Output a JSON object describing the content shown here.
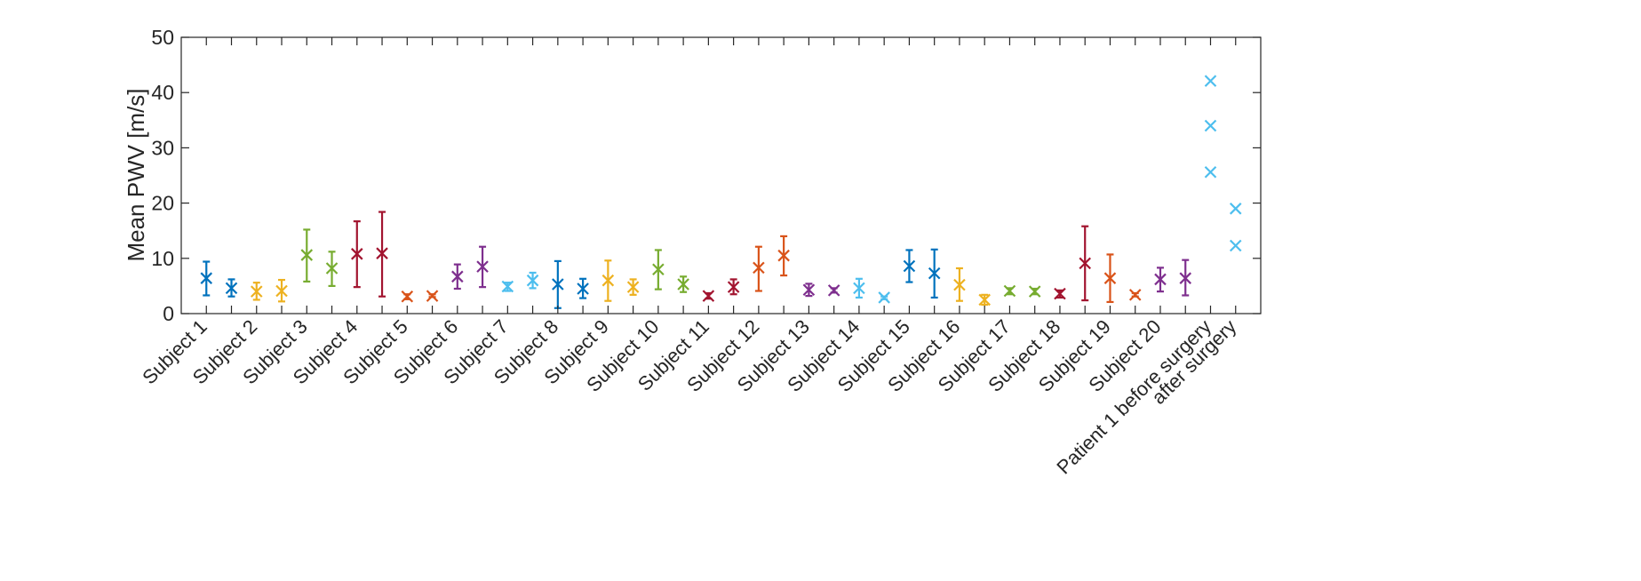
{
  "chart_data": {
    "type": "scatter",
    "title": "",
    "xlabel": "",
    "ylabel": "Mean PWV [m/s]",
    "ylim": [
      0,
      50
    ],
    "yticks": [
      0,
      10,
      20,
      30,
      40,
      50
    ],
    "grid": false,
    "categories": [
      "Subject 1",
      "Subject 2",
      "Subject 3",
      "Subject 4",
      "Subject 5",
      "Subject 6",
      "Subject 7",
      "Subject 8",
      "Subject 9",
      "Subject 10",
      "Subject 11",
      "Subject 12",
      "Subject 13",
      "Subject 14",
      "Subject 15",
      "Subject 16",
      "Subject 17",
      "Subject 18",
      "Subject 19",
      "Subject 20",
      "Patient 1 before surgery",
      "after surgery"
    ],
    "subjects": [
      {
        "label": "Subject 1",
        "color": "#0072BD",
        "measurements": [
          {
            "mean": 6.4,
            "low": 3.3,
            "high": 9.4
          },
          {
            "mean": 4.6,
            "low": 3.1,
            "high": 6.2
          }
        ]
      },
      {
        "label": "Subject 2",
        "color": "#EDB120",
        "measurements": [
          {
            "mean": 4.0,
            "low": 2.5,
            "high": 5.6
          },
          {
            "mean": 4.1,
            "low": 2.2,
            "high": 6.1
          }
        ]
      },
      {
        "label": "Subject 3",
        "color": "#77AC30",
        "measurements": [
          {
            "mean": 10.6,
            "low": 5.8,
            "high": 15.2
          },
          {
            "mean": 8.2,
            "low": 5.0,
            "high": 11.2
          }
        ]
      },
      {
        "label": "Subject 4",
        "color": "#A2142F",
        "measurements": [
          {
            "mean": 10.8,
            "low": 4.8,
            "high": 16.7
          },
          {
            "mean": 10.9,
            "low": 3.1,
            "high": 18.4
          }
        ]
      },
      {
        "label": "Subject 5",
        "color": "#D95319",
        "measurements": [
          {
            "mean": 3.1,
            "low": 2.6,
            "high": 3.5
          },
          {
            "mean": 3.2,
            "low": 3.0,
            "high": 3.5
          }
        ]
      },
      {
        "label": "Subject 6",
        "color": "#7E2F8E",
        "measurements": [
          {
            "mean": 6.7,
            "low": 4.5,
            "high": 8.9
          },
          {
            "mean": 8.5,
            "low": 4.8,
            "high": 12.1
          }
        ]
      },
      {
        "label": "Subject 7",
        "color": "#4DBEEE",
        "measurements": [
          {
            "mean": 4.9,
            "low": 4.1,
            "high": 5.6
          },
          {
            "mean": 6.0,
            "low": 4.6,
            "high": 7.4
          }
        ]
      },
      {
        "label": "Subject 8",
        "color": "#0072BD",
        "measurements": [
          {
            "mean": 5.3,
            "low": 1.0,
            "high": 9.5
          },
          {
            "mean": 4.5,
            "low": 2.8,
            "high": 6.3
          }
        ]
      },
      {
        "label": "Subject 9",
        "color": "#EDB120",
        "measurements": [
          {
            "mean": 6.0,
            "low": 2.3,
            "high": 9.6
          },
          {
            "mean": 4.8,
            "low": 3.4,
            "high": 6.2
          }
        ]
      },
      {
        "label": "Subject 10",
        "color": "#77AC30",
        "measurements": [
          {
            "mean": 8.0,
            "low": 4.4,
            "high": 11.5
          },
          {
            "mean": 5.3,
            "low": 3.9,
            "high": 6.7
          }
        ]
      },
      {
        "label": "Subject 11",
        "color": "#A2142F",
        "measurements": [
          {
            "mean": 3.2,
            "low": 2.7,
            "high": 3.7
          },
          {
            "mean": 4.8,
            "low": 3.5,
            "high": 6.2
          }
        ]
      },
      {
        "label": "Subject 12",
        "color": "#D95319",
        "measurements": [
          {
            "mean": 8.3,
            "low": 4.1,
            "high": 12.1
          },
          {
            "mean": 10.5,
            "low": 6.9,
            "high": 14.0
          }
        ]
      },
      {
        "label": "Subject 13",
        "color": "#7E2F8E",
        "measurements": [
          {
            "mean": 4.3,
            "low": 3.2,
            "high": 5.4
          },
          {
            "mean": 4.2,
            "low": 3.8,
            "high": 4.6
          }
        ]
      },
      {
        "label": "Subject 14",
        "color": "#4DBEEE",
        "measurements": [
          {
            "mean": 4.6,
            "low": 2.9,
            "high": 6.3
          },
          {
            "mean": 2.9,
            "low": 2.6,
            "high": 3.1
          }
        ]
      },
      {
        "label": "Subject 15",
        "color": "#0072BD",
        "measurements": [
          {
            "mean": 8.6,
            "low": 5.7,
            "high": 11.5
          },
          {
            "mean": 7.3,
            "low": 2.9,
            "high": 11.6
          }
        ]
      },
      {
        "label": "Subject 16",
        "color": "#EDB120",
        "measurements": [
          {
            "mean": 5.2,
            "low": 2.3,
            "high": 8.2
          },
          {
            "mean": 2.5,
            "low": 1.6,
            "high": 3.4
          }
        ]
      },
      {
        "label": "Subject 17",
        "color": "#77AC30",
        "measurements": [
          {
            "mean": 4.1,
            "low": 3.5,
            "high": 4.6
          },
          {
            "mean": 4.0,
            "low": 3.5,
            "high": 4.5
          }
        ]
      },
      {
        "label": "Subject 18",
        "color": "#A2142F",
        "measurements": [
          {
            "mean": 3.6,
            "low": 2.9,
            "high": 4.2
          },
          {
            "mean": 9.1,
            "low": 2.4,
            "high": 15.8
          }
        ]
      },
      {
        "label": "Subject 19",
        "color": "#D95319",
        "measurements": [
          {
            "mean": 6.4,
            "low": 2.1,
            "high": 10.7
          },
          {
            "mean": 3.4,
            "low": 3.1,
            "high": 3.7
          }
        ]
      },
      {
        "label": "Subject 20",
        "color": "#7E2F8E",
        "measurements": [
          {
            "mean": 6.2,
            "low": 4.0,
            "high": 8.3
          },
          {
            "mean": 6.4,
            "low": 3.3,
            "high": 9.7
          }
        ]
      }
    ],
    "patient": {
      "label_before": "Patient 1 before surgery",
      "label_after": "after surgery",
      "color": "#4DBEEE",
      "before": [
        42.1,
        34.0,
        25.6
      ],
      "after": [
        19.0,
        12.3
      ]
    }
  }
}
